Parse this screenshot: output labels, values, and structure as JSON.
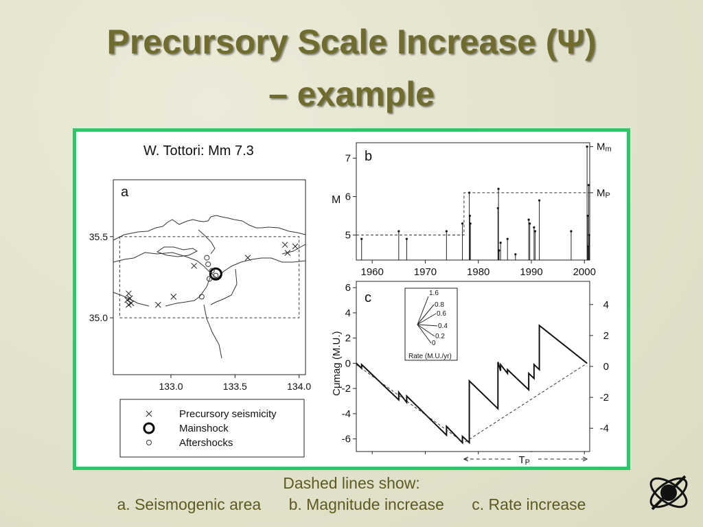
{
  "slide": {
    "title_line1": "Precursory Scale Increase (Ψ)",
    "title_line2": "– example",
    "caption_heading": "Dashed lines show:",
    "caption_items": [
      "a. Seismogenic area",
      "b. Magnitude increase",
      "c. Rate increase"
    ],
    "colors": {
      "title": "#6f6c2e",
      "frame_border": "#22cc66",
      "caption": "#5d5a20"
    }
  },
  "chart_data": [
    {
      "type": "scatter",
      "panel": "a",
      "title": "W. Tottori: Mm 7.3",
      "xlim": [
        132.55,
        134.05
      ],
      "ylim": [
        34.65,
        35.85
      ],
      "x_ticks": [
        "133.0",
        "133.5",
        "134.0"
      ],
      "x_tick_values": [
        133.0,
        133.5,
        134.0
      ],
      "y_ticks": [
        "35.5",
        "35.0"
      ],
      "y_tick_values": [
        35.5,
        35.0
      ],
      "seismogenic_area": {
        "lon": [
          132.6,
          134.0
        ],
        "lat": [
          35.0,
          35.5
        ]
      },
      "series": [
        {
          "name": "Precursory seismicity",
          "marker": "x",
          "x": [
            132.67,
            132.68,
            132.66,
            132.69,
            132.67,
            132.9,
            133.02,
            133.18,
            133.6,
            133.89,
            133.97,
            133.91
          ],
          "y": [
            35.15,
            35.12,
            35.11,
            35.09,
            35.08,
            35.08,
            35.13,
            35.32,
            35.37,
            35.45,
            35.44,
            35.4
          ]
        },
        {
          "name": "Mainshock",
          "marker": "octagon",
          "x": [
            133.35
          ],
          "y": [
            35.27
          ]
        },
        {
          "name": "Aftershocks",
          "marker": "o",
          "x": [
            133.28,
            133.29,
            133.32,
            133.35,
            133.3,
            133.24
          ],
          "y": [
            35.37,
            35.33,
            35.29,
            35.26,
            35.24,
            35.13
          ]
        }
      ],
      "legend": [
        "Precursory seismicity",
        "Mainshock",
        "Aftershocks"
      ],
      "legend_position": "below"
    },
    {
      "type": "line",
      "panel": "b",
      "ylabel": "M",
      "xlim": [
        1957,
        2001
      ],
      "ylim": [
        4.35,
        7.4
      ],
      "x_ticks": [
        "1960",
        "1970",
        "1980",
        "1990",
        "2000"
      ],
      "x_tick_values": [
        1960,
        1970,
        1980,
        1990,
        2000
      ],
      "y_ticks": [
        "5",
        "6",
        "7"
      ],
      "y_tick_values": [
        5,
        6,
        7
      ],
      "right_labels": [
        {
          "base": "M",
          "sub": "m",
          "value": 7.3
        },
        {
          "base": "M",
          "sub": "P",
          "value": 6.1
        }
      ],
      "events": {
        "year": [
          1958,
          1965,
          1966.5,
          1974,
          1977,
          1978.3,
          1978.4,
          1978.5,
          1983.7,
          1983.8,
          1983.9,
          1984.2,
          1985.5,
          1987,
          1989.5,
          1989.7,
          1990.5,
          1990.7,
          1991.5,
          1997.5,
          2000.5,
          2000.6,
          2000.7,
          2000.8,
          2000.9
        ],
        "magnitude": [
          4.9,
          5.1,
          4.9,
          5.1,
          5.3,
          6.1,
          5.5,
          5.3,
          5.7,
          6.2,
          4.6,
          4.8,
          4.9,
          4.5,
          5.4,
          5.3,
          5.2,
          5.1,
          5.9,
          5.1,
          7.3,
          5.5,
          4.7,
          6.3,
          5.0
        ]
      },
      "magnitude_increase": {
        "year": [
          1957,
          1977.3,
          1977.3,
          2001
        ],
        "level": [
          5.0,
          5.0,
          6.1,
          6.1
        ]
      }
    },
    {
      "type": "line",
      "panel": "c",
      "ylabel": "Cμmag (M.U.)",
      "xlim": [
        1957,
        2001
      ],
      "ylim": [
        -7,
        6.5
      ],
      "y_ticks_left": [
        "6",
        "4",
        "2",
        "0",
        "-2",
        "-4",
        "-6"
      ],
      "y_tick_values_left": [
        6,
        4,
        2,
        0,
        -2,
        -4,
        -6
      ],
      "y_ticks_right": [
        "4",
        "2",
        "0",
        "-2",
        "-4"
      ],
      "y_tick_values_right": [
        4,
        2,
        0,
        -2,
        -4
      ],
      "series": [
        {
          "name": "",
          "x": [
            1957,
            1958,
            1958,
            1965,
            1965,
            1966.5,
            1966.5,
            1974,
            1974,
            1977,
            1977,
            1978.3,
            1978.3,
            1983.7,
            1983.7,
            1984.2,
            1984.2,
            1985.5,
            1985.5,
            1989.5,
            1989.5,
            1990.5,
            1990.5,
            1991.5,
            1991.5,
            2000.5
          ],
          "y": [
            0,
            -0.4,
            -0.1,
            -2.9,
            -2.3,
            -3.1,
            -2.6,
            -5.7,
            -5.0,
            -6.3,
            -5.8,
            -6.3,
            -1.4,
            -3.6,
            0.1,
            -0.6,
            -0.1,
            -0.8,
            -0.5,
            -2.1,
            -0.8,
            -1.2,
            -0.1,
            -0.5,
            3.0,
            0.0
          ]
        }
      ],
      "rate_increase": {
        "x": [
          1957,
          1977.3,
          2000.5
        ],
        "y": [
          -0.1,
          -6.3,
          0.0
        ]
      },
      "bottom_annotation": {
        "base": "T",
        "sub": "P",
        "from": 1977.3,
        "to": 2000.5
      },
      "inset": {
        "title": "Rate (M.U./yr)",
        "rays": [
          "1.6",
          "0.8",
          "0.6",
          "0.4",
          "0.2",
          "0"
        ],
        "ray_values": [
          1.6,
          0.8,
          0.6,
          0.4,
          0.2,
          0
        ]
      }
    }
  ]
}
